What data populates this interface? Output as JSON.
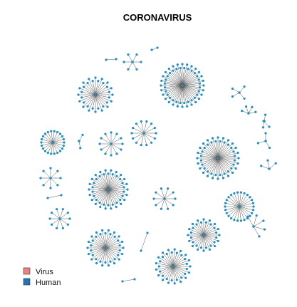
{
  "title": "CORONAVIRUS",
  "legend": {
    "items": [
      {
        "label": "Virus",
        "color": "#f08080"
      },
      {
        "label": "Human",
        "color": "#1f77b4"
      }
    ],
    "placement": "bottom-left"
  },
  "node_color": "#1f8fc8",
  "edge_color": "#555555",
  "network": {
    "components": [
      {
        "type": "star",
        "leaves": 32
      },
      {
        "type": "star",
        "leaves": 56
      },
      {
        "type": "star",
        "leaves": 48
      },
      {
        "type": "star",
        "leaves": 44
      },
      {
        "type": "star",
        "leaves": 36
      },
      {
        "type": "star",
        "leaves": 34
      },
      {
        "type": "star",
        "leaves": 32
      },
      {
        "type": "star",
        "leaves": 26
      },
      {
        "type": "star",
        "leaves": 22
      },
      {
        "type": "star",
        "leaves": 14
      },
      {
        "type": "star",
        "leaves": 12
      },
      {
        "type": "star",
        "leaves": 10
      },
      {
        "type": "star",
        "leaves": 10
      },
      {
        "type": "star",
        "leaves": 8
      },
      {
        "type": "star",
        "leaves": 6
      },
      {
        "type": "star",
        "leaves": 5
      },
      {
        "type": "star",
        "leaves": 4
      },
      {
        "type": "star",
        "leaves": 4
      },
      {
        "type": "star",
        "leaves": 3
      },
      {
        "type": "star",
        "leaves": 3
      },
      {
        "type": "star",
        "leaves": 2
      },
      {
        "type": "star",
        "leaves": 2
      },
      {
        "type": "pair",
        "leaves": 1
      },
      {
        "type": "pair",
        "leaves": 1
      },
      {
        "type": "pair",
        "leaves": 1
      },
      {
        "type": "pair",
        "leaves": 1
      },
      {
        "type": "pair",
        "leaves": 1
      },
      {
        "type": "pair",
        "leaves": 1
      }
    ]
  }
}
